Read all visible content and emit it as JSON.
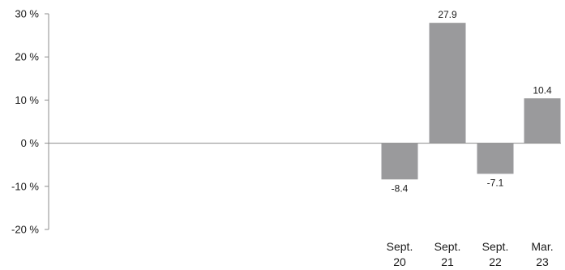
{
  "chart_data": {
    "type": "bar",
    "categories": [
      {
        "line1": "Sept.",
        "line2": "20"
      },
      {
        "line1": "Sept.",
        "line2": "21"
      },
      {
        "line1": "Sept.",
        "line2": "22"
      },
      {
        "line1": "Mar.",
        "line2": "23"
      }
    ],
    "values": [
      -8.4,
      27.9,
      -7.1,
      10.4
    ],
    "value_labels": [
      "-8.4",
      "27.9",
      "-7.1",
      "10.4"
    ],
    "ylim": [
      -20,
      30
    ],
    "yticks": [
      {
        "value": 30,
        "label": "30 %"
      },
      {
        "value": 20,
        "label": "20 %"
      },
      {
        "value": 10,
        "label": "10 %"
      },
      {
        "value": 0,
        "label": "0 %"
      },
      {
        "value": -10,
        "label": "-10 %"
      },
      {
        "value": -20,
        "label": "-20 %"
      }
    ],
    "grid": false,
    "legend": "none",
    "colors": {
      "bar": "#9a9a9c",
      "axis": "#8c8c8c",
      "text": "#1a1a1a"
    }
  }
}
